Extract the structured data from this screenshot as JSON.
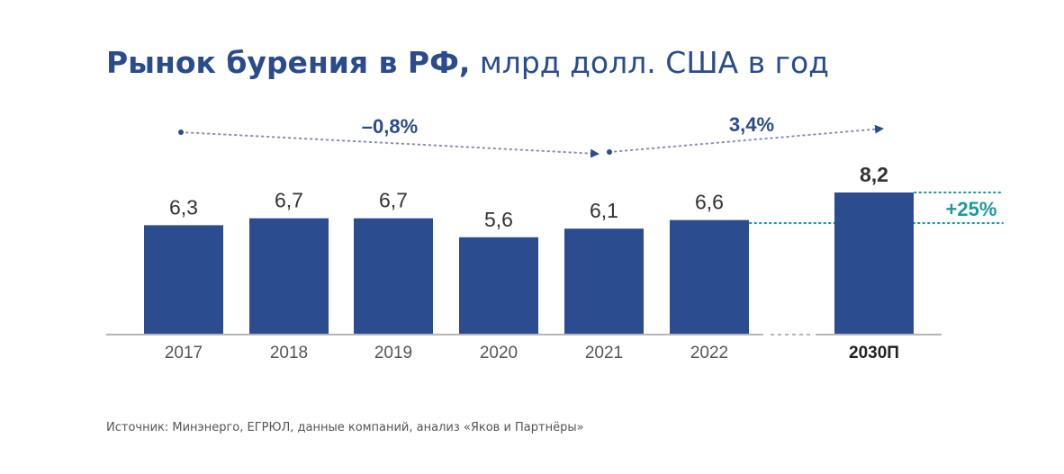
{
  "title": {
    "bold": "Рынок бурения в РФ,",
    "normal": " млрд долл. США в год"
  },
  "chart_data": {
    "type": "bar",
    "categories": [
      "2017",
      "2018",
      "2019",
      "2020",
      "2021",
      "2022",
      "2030П"
    ],
    "values": [
      6.3,
      6.7,
      6.7,
      5.6,
      6.1,
      6.6,
      8.2
    ],
    "value_labels": [
      "6,3",
      "6,7",
      "6,7",
      "5,6",
      "6,1",
      "6,6",
      "8,2"
    ],
    "highlight_category": "2030П",
    "ylim": [
      0,
      8.2
    ],
    "xlabel": "",
    "ylabel": "",
    "annotations": {
      "trend_2017_2021": "–0,8%",
      "trend_2021_2030": "3,4%",
      "growth_2022_2030": "+25%"
    }
  },
  "source": "Источник: Минэнерго, ЕГРЮЛ, данные компаний, анализ «Яков и Партнёры»",
  "colors": {
    "title": "#2a4b8c",
    "bar": "#2b4c8f",
    "label": "#333333",
    "tick": "#555555",
    "accent_teal": "#1b9a9a",
    "dots": "#8a8fb3",
    "axis": "#8a8a8a"
  }
}
